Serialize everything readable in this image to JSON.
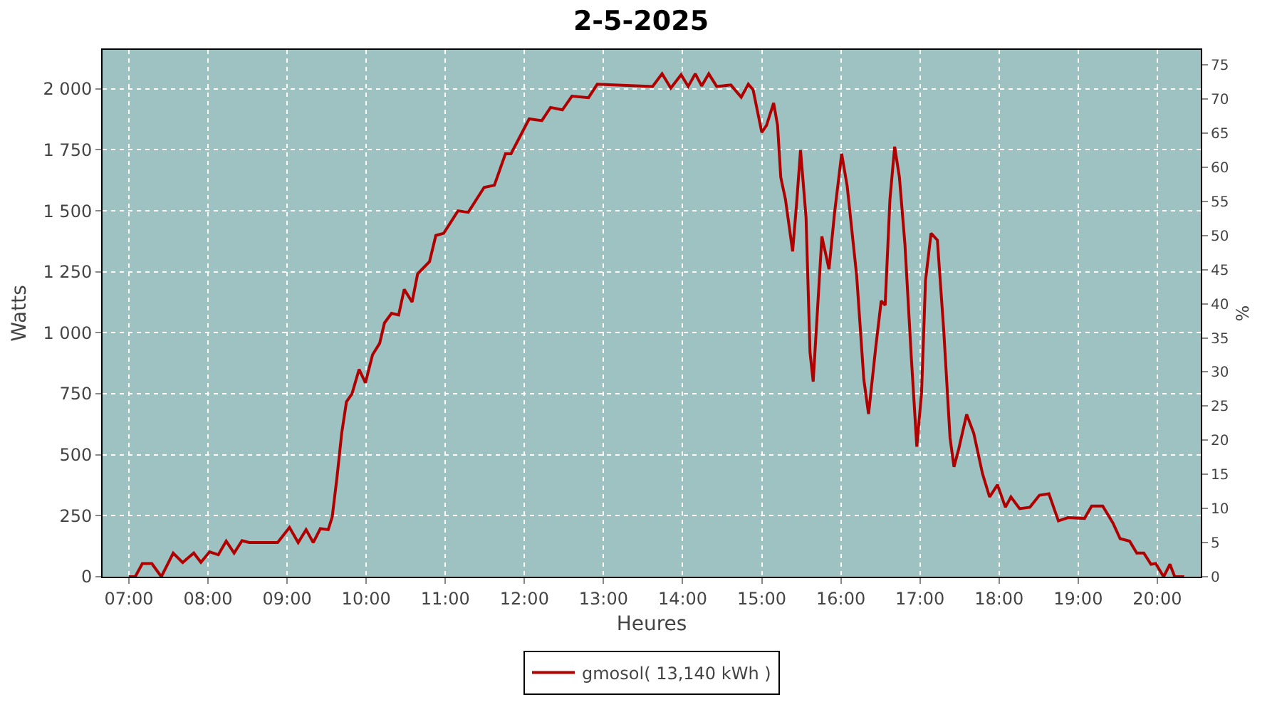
{
  "chart_data": {
    "type": "line",
    "title": "2-5-2025",
    "xlabel": "Heures",
    "ylabel": "Watts",
    "y2label": "%",
    "x": [
      7.0,
      7.08,
      7.17,
      7.29,
      7.41,
      7.56,
      7.68,
      7.82,
      7.91,
      8.02,
      8.13,
      8.23,
      8.33,
      8.43,
      8.52,
      8.88,
      9.03,
      9.14,
      9.24,
      9.33,
      9.42,
      9.52,
      9.57,
      9.63,
      9.69,
      9.75,
      9.82,
      9.91,
      9.99,
      10.08,
      10.17,
      10.23,
      10.32,
      10.41,
      10.48,
      10.58,
      10.65,
      10.8,
      10.88,
      10.98,
      11.16,
      11.29,
      11.49,
      11.62,
      11.76,
      11.83,
      12.06,
      12.22,
      12.33,
      12.48,
      12.6,
      12.81,
      12.92,
      13.62,
      13.74,
      13.85,
      13.98,
      14.07,
      14.16,
      14.24,
      14.33,
      14.43,
      14.61,
      14.74,
      14.83,
      14.89,
      15.0,
      15.06,
      15.15,
      15.2,
      15.24,
      15.3,
      15.39,
      15.44,
      15.49,
      15.56,
      15.61,
      15.65,
      15.72,
      15.76,
      15.85,
      15.92,
      16.01,
      16.08,
      16.2,
      16.29,
      16.35,
      16.44,
      16.51,
      16.56,
      16.62,
      16.68,
      16.74,
      16.81,
      16.89,
      16.96,
      17.02,
      17.07,
      17.14,
      17.22,
      17.3,
      17.38,
      17.43,
      17.49,
      17.59,
      17.68,
      17.79,
      17.88,
      17.98,
      18.08,
      18.15,
      18.26,
      18.39,
      18.51,
      18.63,
      18.75,
      18.87,
      19.08,
      19.17,
      19.31,
      19.44,
      19.53,
      19.65,
      19.74,
      19.83,
      19.92,
      19.98,
      20.08,
      20.16,
      20.22,
      20.34
    ],
    "series": [
      {
        "name": "gmosol( 13,140 kWh )",
        "color": "#b00000",
        "values": [
          0,
          0,
          54,
          54,
          0,
          97,
          58,
          97,
          59,
          102,
          90,
          146,
          97,
          148,
          140,
          140,
          202,
          140,
          193,
          140,
          197,
          193,
          245,
          406,
          588,
          717,
          750,
          850,
          795,
          910,
          957,
          1040,
          1080,
          1073,
          1178,
          1126,
          1242,
          1292,
          1399,
          1408,
          1500,
          1494,
          1596,
          1605,
          1734,
          1734,
          1877,
          1870,
          1924,
          1914,
          1970,
          1964,
          2019,
          2010,
          2062,
          2003,
          2058,
          2010,
          2062,
          2012,
          2062,
          2010,
          2016,
          1966,
          2019,
          1997,
          1822,
          1850,
          1942,
          1850,
          1638,
          1546,
          1334,
          1528,
          1749,
          1472,
          920,
          800,
          1178,
          1395,
          1261,
          1491,
          1734,
          1601,
          1233,
          809,
          667,
          938,
          1131,
          1113,
          1546,
          1763,
          1638,
          1362,
          902,
          533,
          754,
          1214,
          1408,
          1380,
          1012,
          570,
          450,
          524,
          666,
          588,
          423,
          327,
          377,
          285,
          327,
          279,
          285,
          334,
          340,
          229,
          242,
          239,
          290,
          290,
          220,
          156,
          146,
          97,
          97,
          51,
          54,
          0,
          51,
          0,
          0
        ]
      }
    ],
    "xlim": [
      6.667,
      20.55
    ],
    "xticks": [
      {
        "value": 7,
        "label": "07:00"
      },
      {
        "value": 8,
        "label": "08:00"
      },
      {
        "value": 9,
        "label": "09:00"
      },
      {
        "value": 10,
        "label": "10:00"
      },
      {
        "value": 11,
        "label": "11:00"
      },
      {
        "value": 12,
        "label": "12:00"
      },
      {
        "value": 13,
        "label": "13:00"
      },
      {
        "value": 14,
        "label": "14:00"
      },
      {
        "value": 15,
        "label": "15:00"
      },
      {
        "value": 16,
        "label": "16:00"
      },
      {
        "value": 17,
        "label": "17:00"
      },
      {
        "value": 18,
        "label": "18:00"
      },
      {
        "value": 19,
        "label": "19:00"
      },
      {
        "value": 20,
        "label": "20:00"
      }
    ],
    "ylim": [
      0,
      2160
    ],
    "yticks": [
      {
        "value": 0,
        "label": "0"
      },
      {
        "value": 250,
        "label": "250"
      },
      {
        "value": 500,
        "label": "500"
      },
      {
        "value": 750,
        "label": "750"
      },
      {
        "value": 1000,
        "label": "1 000"
      },
      {
        "value": 1250,
        "label": "1 250"
      },
      {
        "value": 1500,
        "label": "1 500"
      },
      {
        "value": 1750,
        "label": "1 750"
      },
      {
        "value": 2000,
        "label": "2 000"
      }
    ],
    "y2lim": [
      0,
      77.2
    ],
    "y2ticks": [
      0,
      5,
      10,
      15,
      20,
      25,
      30,
      35,
      40,
      45,
      50,
      55,
      60,
      65,
      70,
      75
    ],
    "grid": true,
    "legend": "bottom",
    "marker": "none",
    "line_style": "solid"
  }
}
